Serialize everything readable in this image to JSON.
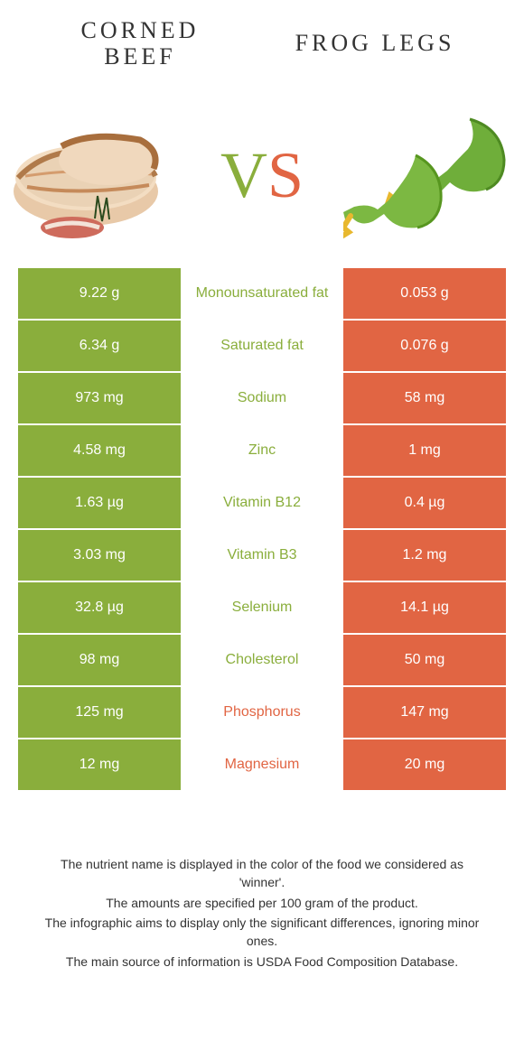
{
  "colors": {
    "left": "#8AAE3C",
    "right": "#E16543",
    "background": "#ffffff",
    "text_dark": "#333333"
  },
  "foods": {
    "left": {
      "name": "Corned beef"
    },
    "right": {
      "name": "Frog legs"
    }
  },
  "vs_label": "VS",
  "rows": [
    {
      "nutrient": "Monounsaturated fat",
      "left": "9.22 g",
      "right": "0.053 g",
      "winner": "left"
    },
    {
      "nutrient": "Saturated fat",
      "left": "6.34 g",
      "right": "0.076 g",
      "winner": "left"
    },
    {
      "nutrient": "Sodium",
      "left": "973 mg",
      "right": "58 mg",
      "winner": "left"
    },
    {
      "nutrient": "Zinc",
      "left": "4.58 mg",
      "right": "1 mg",
      "winner": "left"
    },
    {
      "nutrient": "Vitamin B12",
      "left": "1.63 µg",
      "right": "0.4 µg",
      "winner": "left"
    },
    {
      "nutrient": "Vitamin B3",
      "left": "3.03 mg",
      "right": "1.2 mg",
      "winner": "left"
    },
    {
      "nutrient": "Selenium",
      "left": "32.8 µg",
      "right": "14.1 µg",
      "winner": "left"
    },
    {
      "nutrient": "Cholesterol",
      "left": "98 mg",
      "right": "50 mg",
      "winner": "left"
    },
    {
      "nutrient": "Phosphorus",
      "left": "125 mg",
      "right": "147 mg",
      "winner": "right"
    },
    {
      "nutrient": "Magnesium",
      "left": "12 mg",
      "right": "20 mg",
      "winner": "right"
    }
  ],
  "footnotes": [
    "The nutrient name is displayed in the color of the food we considered as 'winner'.",
    "The amounts are specified per 100 gram of the product.",
    "The infographic aims to display only the significant differences, ignoring minor ones.",
    "The main source of information is USDA Food Composition Database."
  ]
}
